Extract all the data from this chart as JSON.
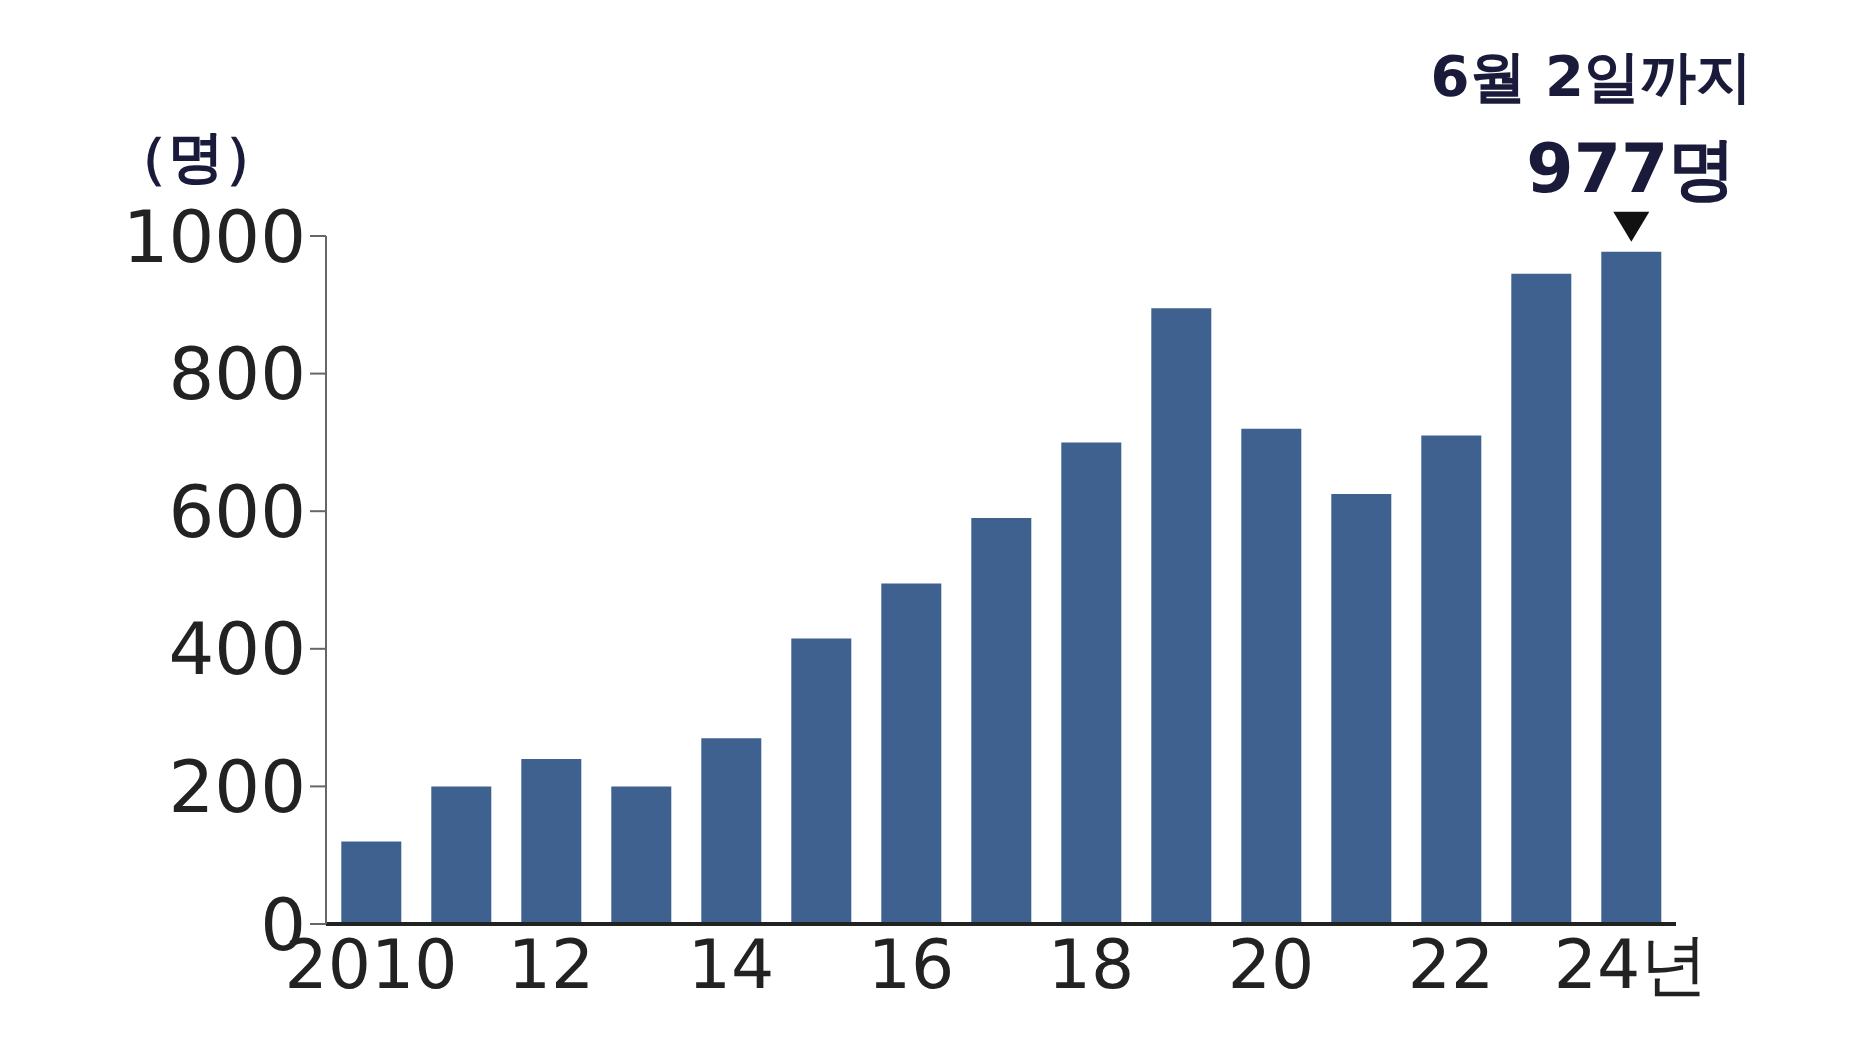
{
  "chart_data": {
    "type": "bar",
    "ylabel": "（명）",
    "categories": [
      "2010",
      null,
      "12",
      null,
      "14",
      null,
      "16",
      null,
      "18",
      null,
      "20",
      null,
      "22",
      null,
      "24년"
    ],
    "values": [
      120,
      200,
      240,
      200,
      270,
      415,
      495,
      590,
      700,
      895,
      720,
      625,
      710,
      945,
      977
    ],
    "color": "#3f6190",
    "ylim": [
      0,
      1000
    ],
    "yticks": [
      0,
      200,
      400,
      600,
      800,
      1000
    ],
    "grid": false,
    "annotations": [
      "6월 2일까지",
      {
        "text": "977명",
        "x": "24년",
        "y": 977
      }
    ]
  }
}
